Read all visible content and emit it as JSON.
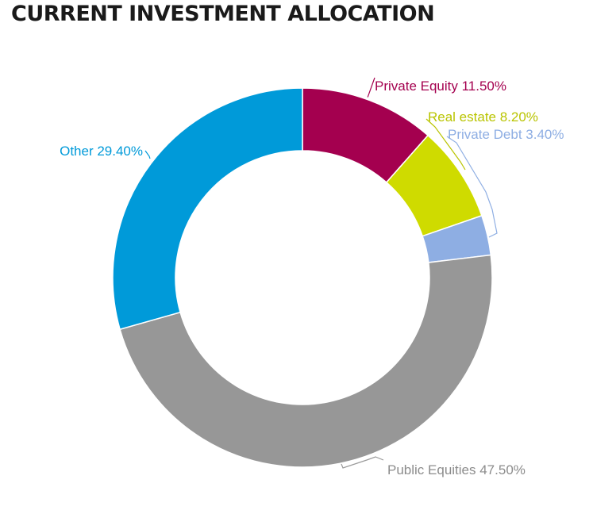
{
  "chart_data": {
    "type": "pie",
    "title": "CURRENT INVESTMENT ALLOCATION",
    "categories": [
      "Private Equity",
      "Real estate",
      "Private Debt",
      "Public Equities",
      "Other"
    ],
    "values": [
      11.5,
      8.2,
      3.4,
      47.5,
      29.4
    ],
    "labels": [
      "Private Equity 11.50%",
      "Real estate 8.20%",
      "Private Debt 3.40%",
      "Public Equities 47.50%",
      "Other 29.40%"
    ],
    "colors": [
      "#a4004f",
      "#cfdb00",
      "#8eaee3",
      "#979797",
      "#009ad9"
    ],
    "label_colors": [
      "#a4004f",
      "#b9c400",
      "#8eaee3",
      "#8c8c8c",
      "#009ad9"
    ],
    "donut": true,
    "start_angle": "12 o'clock",
    "direction": "clockwise",
    "legend": "none"
  }
}
